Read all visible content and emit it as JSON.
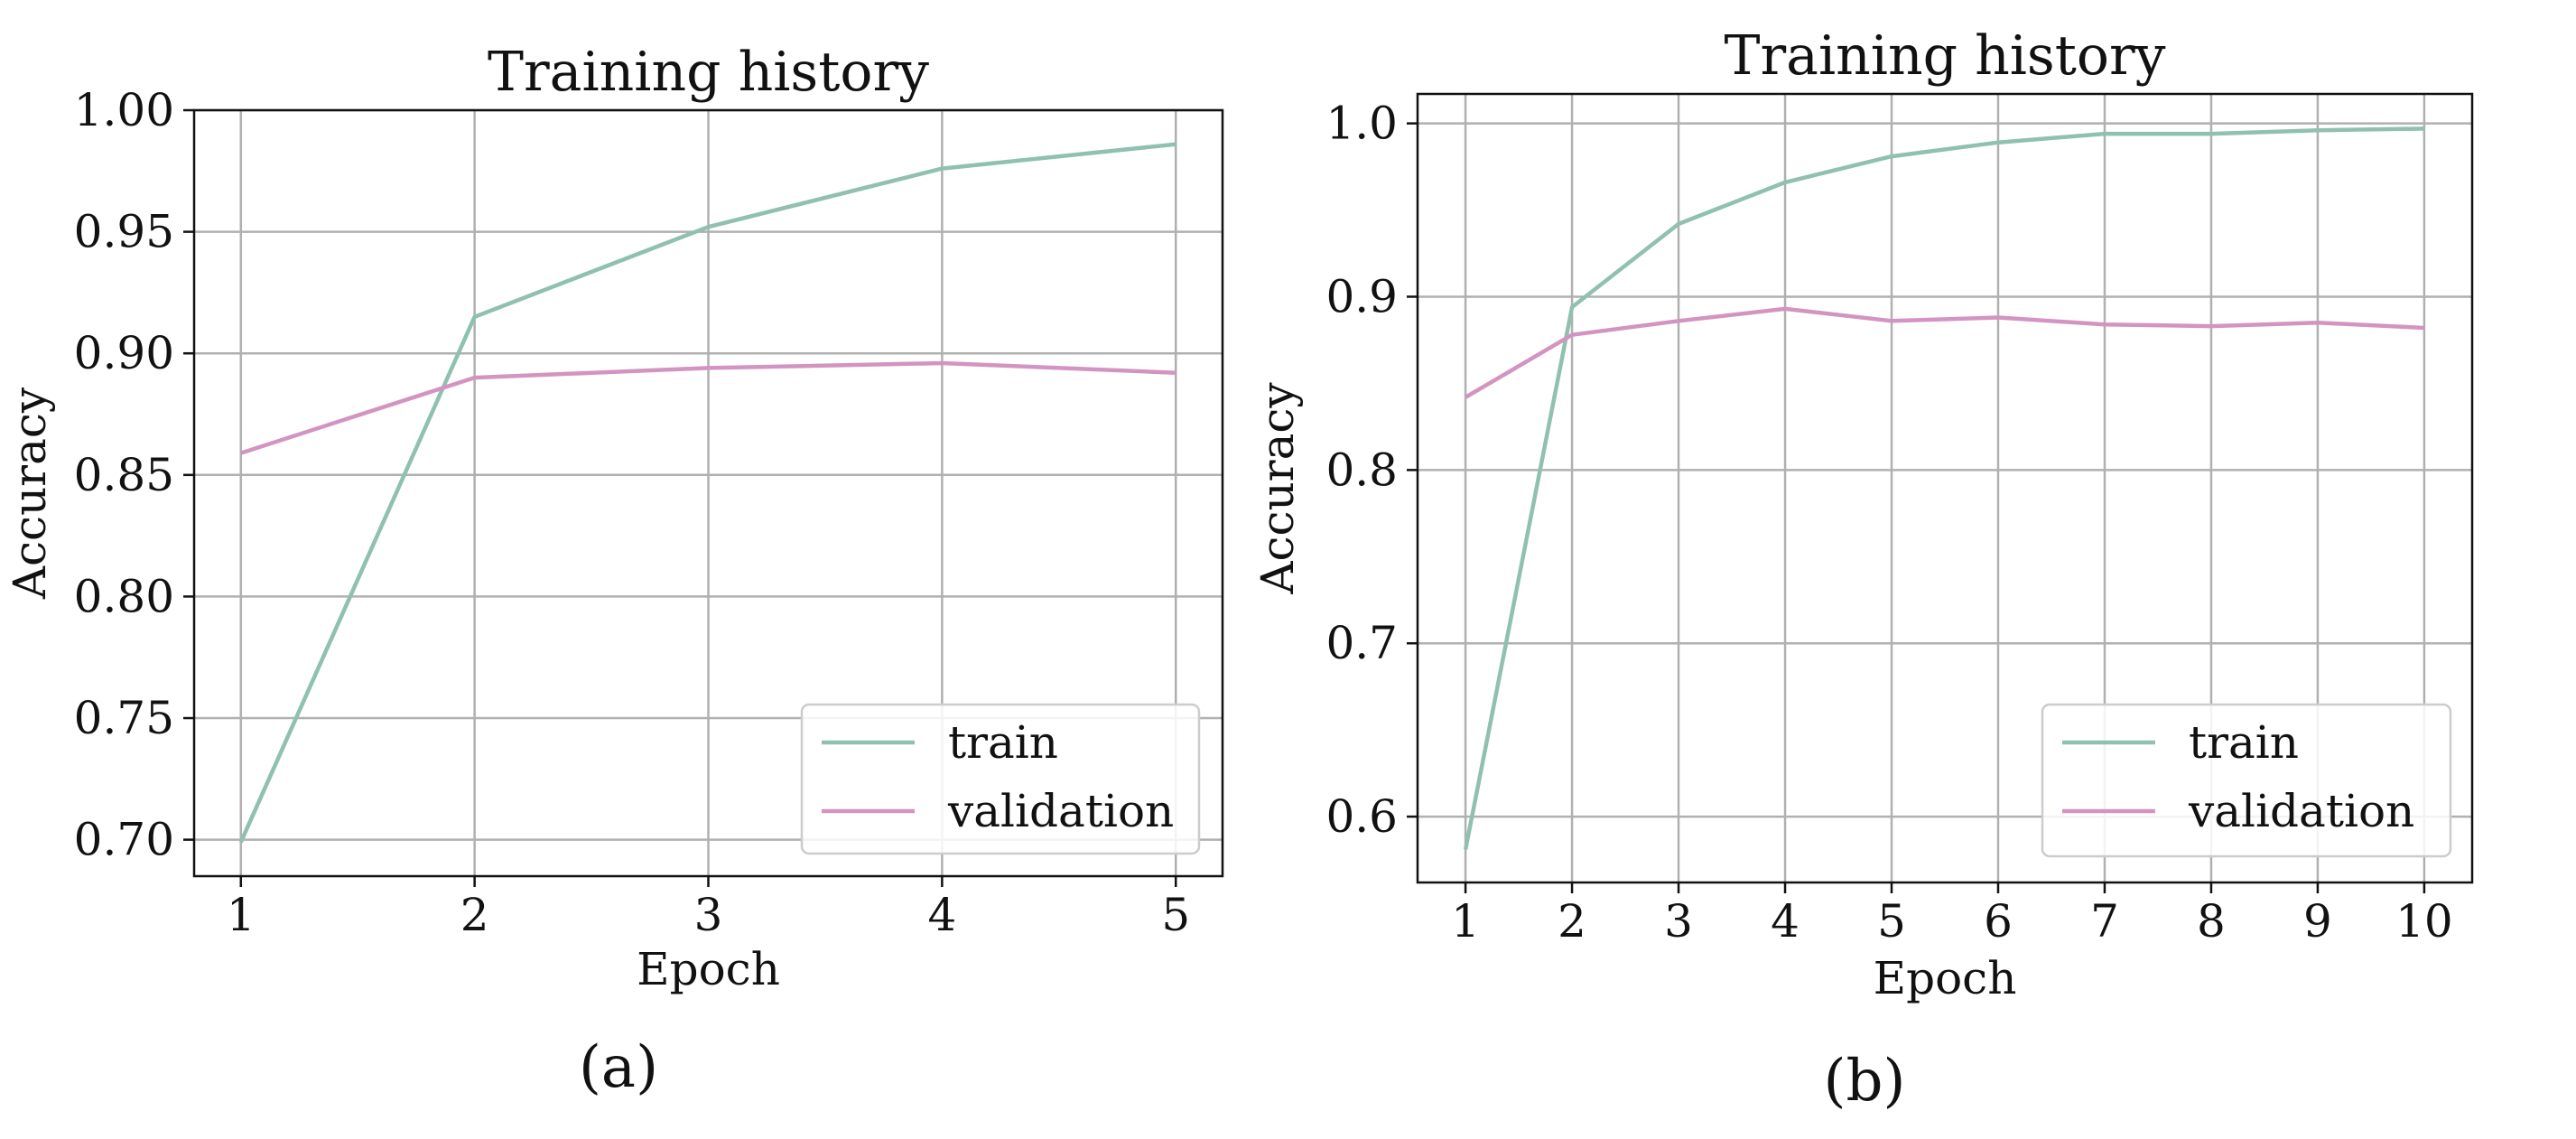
{
  "colors": {
    "train": "#8fc1ae",
    "validation": "#d394c2",
    "grid": "#b0b0b0",
    "axes": "#111111"
  },
  "chart_data": [
    {
      "type": "line",
      "caption": "(a)",
      "title": "Training history",
      "xlabel": "Epoch",
      "ylabel": "Accuracy",
      "xlim": [
        0.8,
        5.2
      ],
      "ylim": [
        0.685,
        1.0
      ],
      "xticks": [
        1,
        2,
        3,
        4,
        5
      ],
      "yticks": [
        0.7,
        0.75,
        0.8,
        0.85,
        0.9,
        0.95,
        1.0
      ],
      "ytick_labels": [
        "0.70",
        "0.75",
        "0.80",
        "0.85",
        "0.90",
        "0.95",
        "1.00"
      ],
      "grid": true,
      "legend_position": "lower-right",
      "x": [
        1,
        2,
        3,
        4,
        5
      ],
      "series": [
        {
          "name": "train",
          "color_key": "train",
          "values": [
            0.699,
            0.915,
            0.952,
            0.976,
            0.986
          ]
        },
        {
          "name": "validation",
          "color_key": "validation",
          "values": [
            0.859,
            0.89,
            0.894,
            0.896,
            0.892
          ]
        }
      ]
    },
    {
      "type": "line",
      "caption": "(b)",
      "title": "Training history",
      "xlabel": "Epoch",
      "ylabel": "Accuracy",
      "xlim": [
        0.55,
        10.45
      ],
      "ylim": [
        0.562,
        1.017
      ],
      "xticks": [
        1,
        2,
        3,
        4,
        5,
        6,
        7,
        8,
        9,
        10
      ],
      "yticks": [
        0.6,
        0.7,
        0.8,
        0.9,
        1.0
      ],
      "ytick_labels": [
        "0.6",
        "0.7",
        "0.8",
        "0.9",
        "1.0"
      ],
      "grid": true,
      "legend_position": "lower-right",
      "x": [
        1,
        2,
        3,
        4,
        5,
        6,
        7,
        8,
        9,
        10
      ],
      "series": [
        {
          "name": "train",
          "color_key": "train",
          "values": [
            0.581,
            0.894,
            0.942,
            0.966,
            0.981,
            0.989,
            0.994,
            0.994,
            0.996,
            0.997
          ]
        },
        {
          "name": "validation",
          "color_key": "validation",
          "values": [
            0.842,
            0.878,
            0.886,
            0.893,
            0.886,
            0.888,
            0.884,
            0.883,
            0.885,
            0.882
          ]
        }
      ]
    }
  ]
}
